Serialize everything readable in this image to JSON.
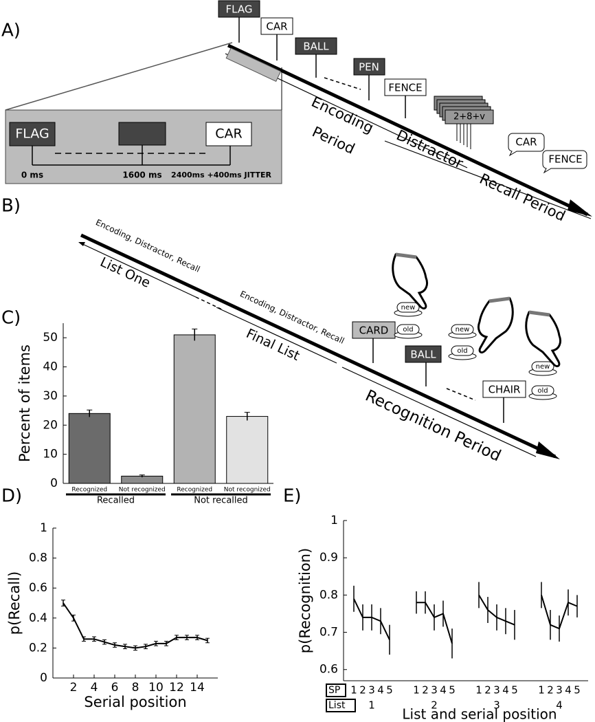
{
  "panel_labels": [
    "A)",
    "B)",
    "C)",
    "D)",
    "E)"
  ],
  "panel_a": {
    "words": [
      "FLAG",
      "CAR",
      "BALL",
      "PEN",
      "FENCE"
    ],
    "distractor": "2+8+v",
    "encoding": [
      "Encoding",
      "Period"
    ],
    "distractor_label": "Distractor",
    "recall_label": "Recall Period",
    "bubbles": [
      "CAR",
      "FENCE"
    ],
    "inset": {
      "words": [
        "FLAG",
        "CAR"
      ],
      "times": [
        "0 ms",
        "1600 ms",
        "2400ms +400ms JITTER"
      ]
    }
  },
  "panel_b": {
    "phase_text": [
      "Encoding, Distractor, Recall",
      "Encoding, Distractor, Recall"
    ],
    "list_one": "List One",
    "final_list": "Final List",
    "recognition": "Recognition Period",
    "words": [
      "CARD",
      "BALL",
      "CHAIR"
    ],
    "buttons": [
      [
        "new",
        "old"
      ],
      [
        "new",
        "old"
      ],
      [
        "new",
        "old"
      ]
    ]
  },
  "chart_data": [
    {
      "type": "bar",
      "ylabel": "Percent of items",
      "categories": [
        "Recognized",
        "Not recognized",
        "Recognized",
        "Not recognized"
      ],
      "groups": [
        "Recalled",
        "Not recalled"
      ],
      "values": [
        24,
        2.5,
        51,
        23
      ],
      "errors": [
        1.2,
        0.4,
        2,
        1.4
      ],
      "colors": [
        "#6b6b6b",
        "#8c8c8c",
        "#b3b3b3",
        "#e2e2e2"
      ],
      "ylim": [
        0,
        55
      ],
      "yticks": [
        0,
        10,
        20,
        30,
        40,
        50
      ]
    },
    {
      "type": "line",
      "ylabel": "p(Recall)",
      "xlabel": "Serial position",
      "color": "#000000",
      "x": [
        1,
        2,
        3,
        4,
        5,
        6,
        7,
        8,
        9,
        10,
        11,
        12,
        13,
        14,
        15
      ],
      "values": [
        0.5,
        0.4,
        0.26,
        0.26,
        0.24,
        0.22,
        0.21,
        0.2,
        0.21,
        0.23,
        0.23,
        0.27,
        0.27,
        0.27,
        0.25
      ],
      "errors": [
        0.02,
        0.02,
        0.015,
        0.015,
        0.015,
        0.015,
        0.015,
        0.015,
        0.015,
        0.015,
        0.015,
        0.015,
        0.015,
        0.015,
        0.015
      ],
      "xlim": [
        0,
        16
      ],
      "xticks": [
        2,
        4,
        6,
        8,
        10,
        12,
        14
      ],
      "ylim": [
        0,
        1
      ],
      "yticks": [
        0,
        0.2,
        0.4,
        0.6,
        0.8,
        1
      ]
    },
    {
      "type": "grouped-line",
      "ylabel": "p(Recognition)",
      "xlabel": "List and serial position",
      "color": "#000000",
      "row_labels": [
        "SP",
        "List"
      ],
      "categories": [
        "1",
        "2",
        "3",
        "4",
        "5"
      ],
      "series": [
        {
          "name": "1",
          "values": [
            0.79,
            0.74,
            0.74,
            0.73,
            0.68
          ],
          "errors": [
            0.035,
            0.035,
            0.035,
            0.035,
            0.04
          ]
        },
        {
          "name": "2",
          "values": [
            0.78,
            0.78,
            0.74,
            0.75,
            0.67
          ],
          "errors": [
            0.03,
            0.03,
            0.035,
            0.035,
            0.04
          ]
        },
        {
          "name": "3",
          "values": [
            0.8,
            0.76,
            0.74,
            0.73,
            0.72
          ],
          "errors": [
            0.035,
            0.035,
            0.035,
            0.035,
            0.04
          ]
        },
        {
          "name": "4",
          "values": [
            0.8,
            0.72,
            0.71,
            0.78,
            0.77
          ],
          "errors": [
            0.035,
            0.04,
            0.035,
            0.035,
            0.03
          ]
        }
      ],
      "ylim": [
        0.57,
        1
      ],
      "yticks": [
        0.6,
        0.7,
        0.8,
        0.9,
        1
      ]
    }
  ]
}
